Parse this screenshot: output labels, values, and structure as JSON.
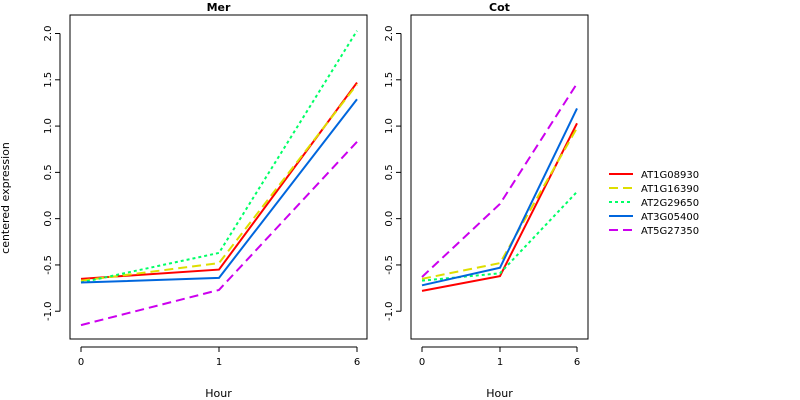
{
  "chart_data": {
    "type": "line",
    "ylabel": "centered expression",
    "xlabel": "Hour",
    "categories": [
      "0",
      "1",
      "6"
    ],
    "ylim": [
      -1.3,
      2.2
    ],
    "yticks": [
      "-1.0",
      "-0.5",
      "0.0",
      "0.5",
      "1.0",
      "1.5",
      "2.0"
    ],
    "yvals": [
      -1.0,
      -0.5,
      0.0,
      0.5,
      1.0,
      1.5,
      2.0
    ],
    "legend_position": "right",
    "series_styles": [
      {
        "name": "AT1G08930",
        "color": "#ff0000",
        "dash": ""
      },
      {
        "name": "AT1G16390",
        "color": "#dede00",
        "dash": "9,5"
      },
      {
        "name": "AT2G29650",
        "color": "#00ff66",
        "dash": "3,3"
      },
      {
        "name": "AT3G05400",
        "color": "#0066dd",
        "dash": ""
      },
      {
        "name": "AT5G27350",
        "color": "#cc00ee",
        "dash": "9,5"
      }
    ],
    "panels": [
      {
        "title": "Mer",
        "series": [
          {
            "name": "AT1G08930",
            "values": [
              -0.65,
              -0.55,
              1.47
            ]
          },
          {
            "name": "AT1G16390",
            "values": [
              -0.67,
              -0.48,
              1.45
            ]
          },
          {
            "name": "AT2G29650",
            "values": [
              -0.69,
              -0.37,
              2.03
            ]
          },
          {
            "name": "AT3G05400",
            "values": [
              -0.69,
              -0.64,
              1.29
            ]
          },
          {
            "name": "AT5G27350",
            "values": [
              -1.15,
              -0.77,
              0.83
            ]
          }
        ]
      },
      {
        "title": "Cot",
        "series": [
          {
            "name": "AT1G08930",
            "values": [
              -0.78,
              -0.62,
              1.03
            ]
          },
          {
            "name": "AT1G16390",
            "values": [
              -0.65,
              -0.48,
              0.98
            ]
          },
          {
            "name": "AT2G29650",
            "values": [
              -0.67,
              -0.59,
              0.29
            ]
          },
          {
            "name": "AT3G05400",
            "values": [
              -0.72,
              -0.53,
              1.19
            ]
          },
          {
            "name": "AT5G27350",
            "values": [
              -0.63,
              0.16,
              1.46
            ]
          }
        ]
      }
    ]
  }
}
